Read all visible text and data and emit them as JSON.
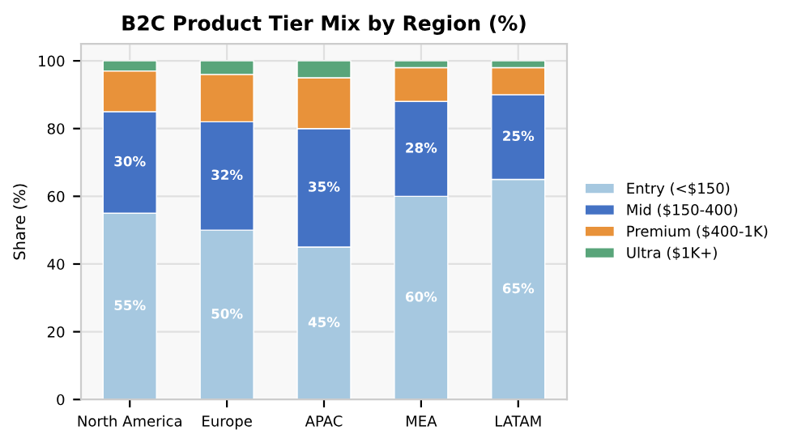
{
  "chart_data": {
    "type": "bar",
    "stacked": true,
    "title": "B2C Product Tier Mix by Region (%)",
    "ylabel": "Share (%)",
    "categories": [
      "North America",
      "Europe",
      "APAC",
      "MEA",
      "LATAM"
    ],
    "series": [
      {
        "name": "Entry (<$150)",
        "color": "#a6c8e0",
        "values": [
          55,
          50,
          45,
          60,
          65
        ],
        "value_labels": [
          "55%",
          "50%",
          "45%",
          "60%",
          "65%"
        ]
      },
      {
        "name": "Mid ($150-400)",
        "color": "#4472c4",
        "values": [
          30,
          32,
          35,
          28,
          25
        ],
        "value_labels": [
          "30%",
          "32%",
          "35%",
          "28%",
          "25%"
        ]
      },
      {
        "name": "Premium ($400-1K)",
        "color": "#e8923a",
        "values": [
          12,
          14,
          15,
          10,
          8
        ]
      },
      {
        "name": "Ultra ($1K+)",
        "color": "#59a57a",
        "values": [
          3,
          4,
          5,
          2,
          2
        ]
      }
    ],
    "ylim": [
      0,
      105
    ],
    "yticks": [
      0,
      20,
      40,
      60,
      80,
      100
    ],
    "grid": true,
    "legend": "right"
  }
}
